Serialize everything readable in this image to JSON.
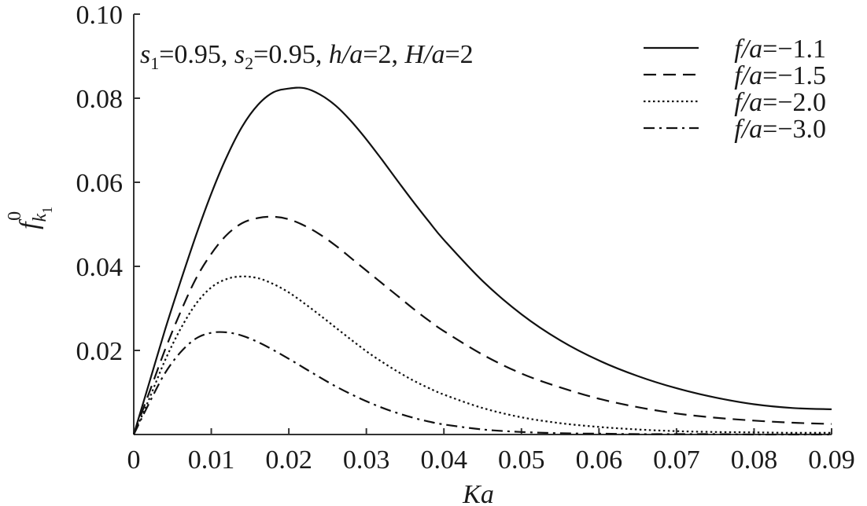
{
  "chart_data": {
    "type": "line",
    "xlabel": "Ka",
    "ylabel": {
      "base": "f",
      "sub": "k",
      "subsub": "1",
      "sup": "0"
    },
    "xlim": [
      0,
      0.09
    ],
    "ylim": [
      0,
      0.1
    ],
    "xticks": [
      {
        "value": 0,
        "label": "0"
      },
      {
        "value": 0.01,
        "label": "0.01"
      },
      {
        "value": 0.02,
        "label": "0.02"
      },
      {
        "value": 0.03,
        "label": "0.03"
      },
      {
        "value": 0.04,
        "label": "0.04"
      },
      {
        "value": 0.05,
        "label": "0.05"
      },
      {
        "value": 0.06,
        "label": "0.06"
      },
      {
        "value": 0.07,
        "label": "0.07"
      },
      {
        "value": 0.08,
        "label": "0.08"
      },
      {
        "value": 0.09,
        "label": "0.09"
      }
    ],
    "yticks": [
      {
        "value": 0.02,
        "label": "0.02"
      },
      {
        "value": 0.04,
        "label": "0.04"
      },
      {
        "value": 0.06,
        "label": "0.06"
      },
      {
        "value": 0.08,
        "label": "0.08"
      },
      {
        "value": 0.1,
        "label": "0.10"
      }
    ],
    "annotation": {
      "s1_var": "s",
      "s1_sub": "1",
      "s1_val": "=0.95, ",
      "s2_var": "s",
      "s2_sub": "2",
      "s2_val": "=0.95, ",
      "h_var": "h/a",
      "h_val": "=2, ",
      "H_var": "H/a",
      "H_val": "=2"
    },
    "legend_position": "top-right",
    "grid": false,
    "series": [
      {
        "name": "f/a=−1.1",
        "name_var": "f/a",
        "name_val": "=−1.1",
        "dash": "solid",
        "x": [
          0,
          0.002,
          0.004,
          0.006,
          0.008,
          0.01,
          0.012,
          0.014,
          0.016,
          0.018,
          0.02,
          0.022,
          0.024,
          0.026,
          0.028,
          0.03,
          0.032,
          0.034,
          0.036,
          0.038,
          0.04,
          0.045,
          0.05,
          0.055,
          0.06,
          0.065,
          0.07,
          0.075,
          0.08,
          0.085,
          0.09
        ],
        "y": [
          0,
          0.0123,
          0.0247,
          0.0362,
          0.0472,
          0.0573,
          0.0661,
          0.0733,
          0.0784,
          0.0814,
          0.0823,
          0.0824,
          0.0809,
          0.0783,
          0.0746,
          0.0702,
          0.0654,
          0.0604,
          0.0555,
          0.0508,
          0.0463,
          0.0365,
          0.0286,
          0.0224,
          0.0176,
          0.0139,
          0.011,
          0.0088,
          0.0072,
          0.0063,
          0.006
        ]
      },
      {
        "name": "f/a=−1.5",
        "name_var": "f/a",
        "name_val": "=−1.5",
        "dash": "dashed",
        "x": [
          0,
          0.002,
          0.004,
          0.006,
          0.008,
          0.01,
          0.012,
          0.014,
          0.016,
          0.018,
          0.02,
          0.022,
          0.024,
          0.026,
          0.028,
          0.03,
          0.032,
          0.034,
          0.036,
          0.038,
          0.04,
          0.045,
          0.05,
          0.055,
          0.06,
          0.065,
          0.07,
          0.075,
          0.08,
          0.085,
          0.09
        ],
        "y": [
          0,
          0.01,
          0.02,
          0.029,
          0.037,
          0.043,
          0.0475,
          0.0503,
          0.0515,
          0.0518,
          0.0512,
          0.0497,
          0.0476,
          0.045,
          0.042,
          0.039,
          0.036,
          0.033,
          0.03,
          0.0272,
          0.0246,
          0.019,
          0.0145,
          0.0112,
          0.0085,
          0.0065,
          0.005,
          0.004,
          0.0033,
          0.0028,
          0.0025
        ]
      },
      {
        "name": "f/a=−2.0",
        "name_var": "f/a",
        "name_val": "=−2.0",
        "dash": "dotted",
        "x": [
          0,
          0.002,
          0.004,
          0.006,
          0.008,
          0.01,
          0.012,
          0.014,
          0.016,
          0.018,
          0.02,
          0.022,
          0.024,
          0.026,
          0.028,
          0.03,
          0.032,
          0.034,
          0.036,
          0.038,
          0.04,
          0.045,
          0.05,
          0.055,
          0.06,
          0.065,
          0.07,
          0.075,
          0.08,
          0.085,
          0.09
        ],
        "y": [
          0,
          0.0085,
          0.0175,
          0.025,
          0.031,
          0.035,
          0.037,
          0.0376,
          0.0372,
          0.0358,
          0.0338,
          0.0312,
          0.0284,
          0.0255,
          0.0226,
          0.0198,
          0.0173,
          0.015,
          0.0129,
          0.0111,
          0.0095,
          0.0063,
          0.0041,
          0.0027,
          0.0018,
          0.0012,
          0.0008,
          0.0006,
          0.0005,
          0.0004,
          0.0004
        ]
      },
      {
        "name": "f/a=−3.0",
        "name_var": "f/a",
        "name_val": "=−3.0",
        "dash": "dashdot",
        "x": [
          0,
          0.002,
          0.004,
          0.006,
          0.008,
          0.01,
          0.012,
          0.014,
          0.016,
          0.018,
          0.02,
          0.022,
          0.024,
          0.026,
          0.028,
          0.03,
          0.032,
          0.034,
          0.036,
          0.038,
          0.04,
          0.045,
          0.05,
          0.055,
          0.06,
          0.065,
          0.07,
          0.075,
          0.08,
          0.085,
          0.09
        ],
        "y": [
          0,
          0.0075,
          0.0145,
          0.0195,
          0.0228,
          0.0242,
          0.0243,
          0.0235,
          0.022,
          0.0201,
          0.018,
          0.0158,
          0.0136,
          0.0115,
          0.0096,
          0.0079,
          0.0064,
          0.0051,
          0.004,
          0.0031,
          0.0024,
          0.0012,
          0.0006,
          0.0003,
          0.0002,
          0.0001,
          0.0001,
          0.0001,
          0.0,
          0.0,
          0.0
        ]
      }
    ]
  }
}
